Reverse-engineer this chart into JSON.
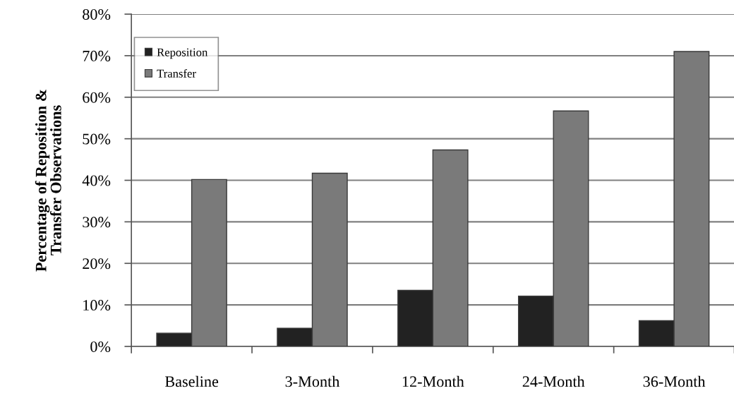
{
  "chart_data": {
    "type": "bar",
    "ylabel": "Percentage of Reposition &\nTransfer Observations",
    "categories": [
      "Baseline",
      "3-Month",
      "12-Month",
      "24-Month",
      "36-Month"
    ],
    "series": [
      {
        "name": "Reposition",
        "color": "#222222",
        "values": [
          3.2,
          4.4,
          13.5,
          12.1,
          6.2
        ]
      },
      {
        "name": "Transfer",
        "color": "#7a7a7a",
        "values": [
          40.2,
          41.7,
          47.3,
          56.7,
          71.0
        ]
      }
    ],
    "ylim": [
      0,
      80
    ],
    "yticks": [
      {
        "value": 0,
        "label": "0%"
      },
      {
        "value": 10,
        "label": "10%"
      },
      {
        "value": 20,
        "label": "20%"
      },
      {
        "value": 30,
        "label": "30%"
      },
      {
        "value": 40,
        "label": "40%"
      },
      {
        "value": 50,
        "label": "50%"
      },
      {
        "value": 60,
        "label": "60%"
      },
      {
        "value": 70,
        "label": "70%"
      },
      {
        "value": 80,
        "label": "80%"
      }
    ],
    "grid": "y",
    "legend": "top left"
  }
}
